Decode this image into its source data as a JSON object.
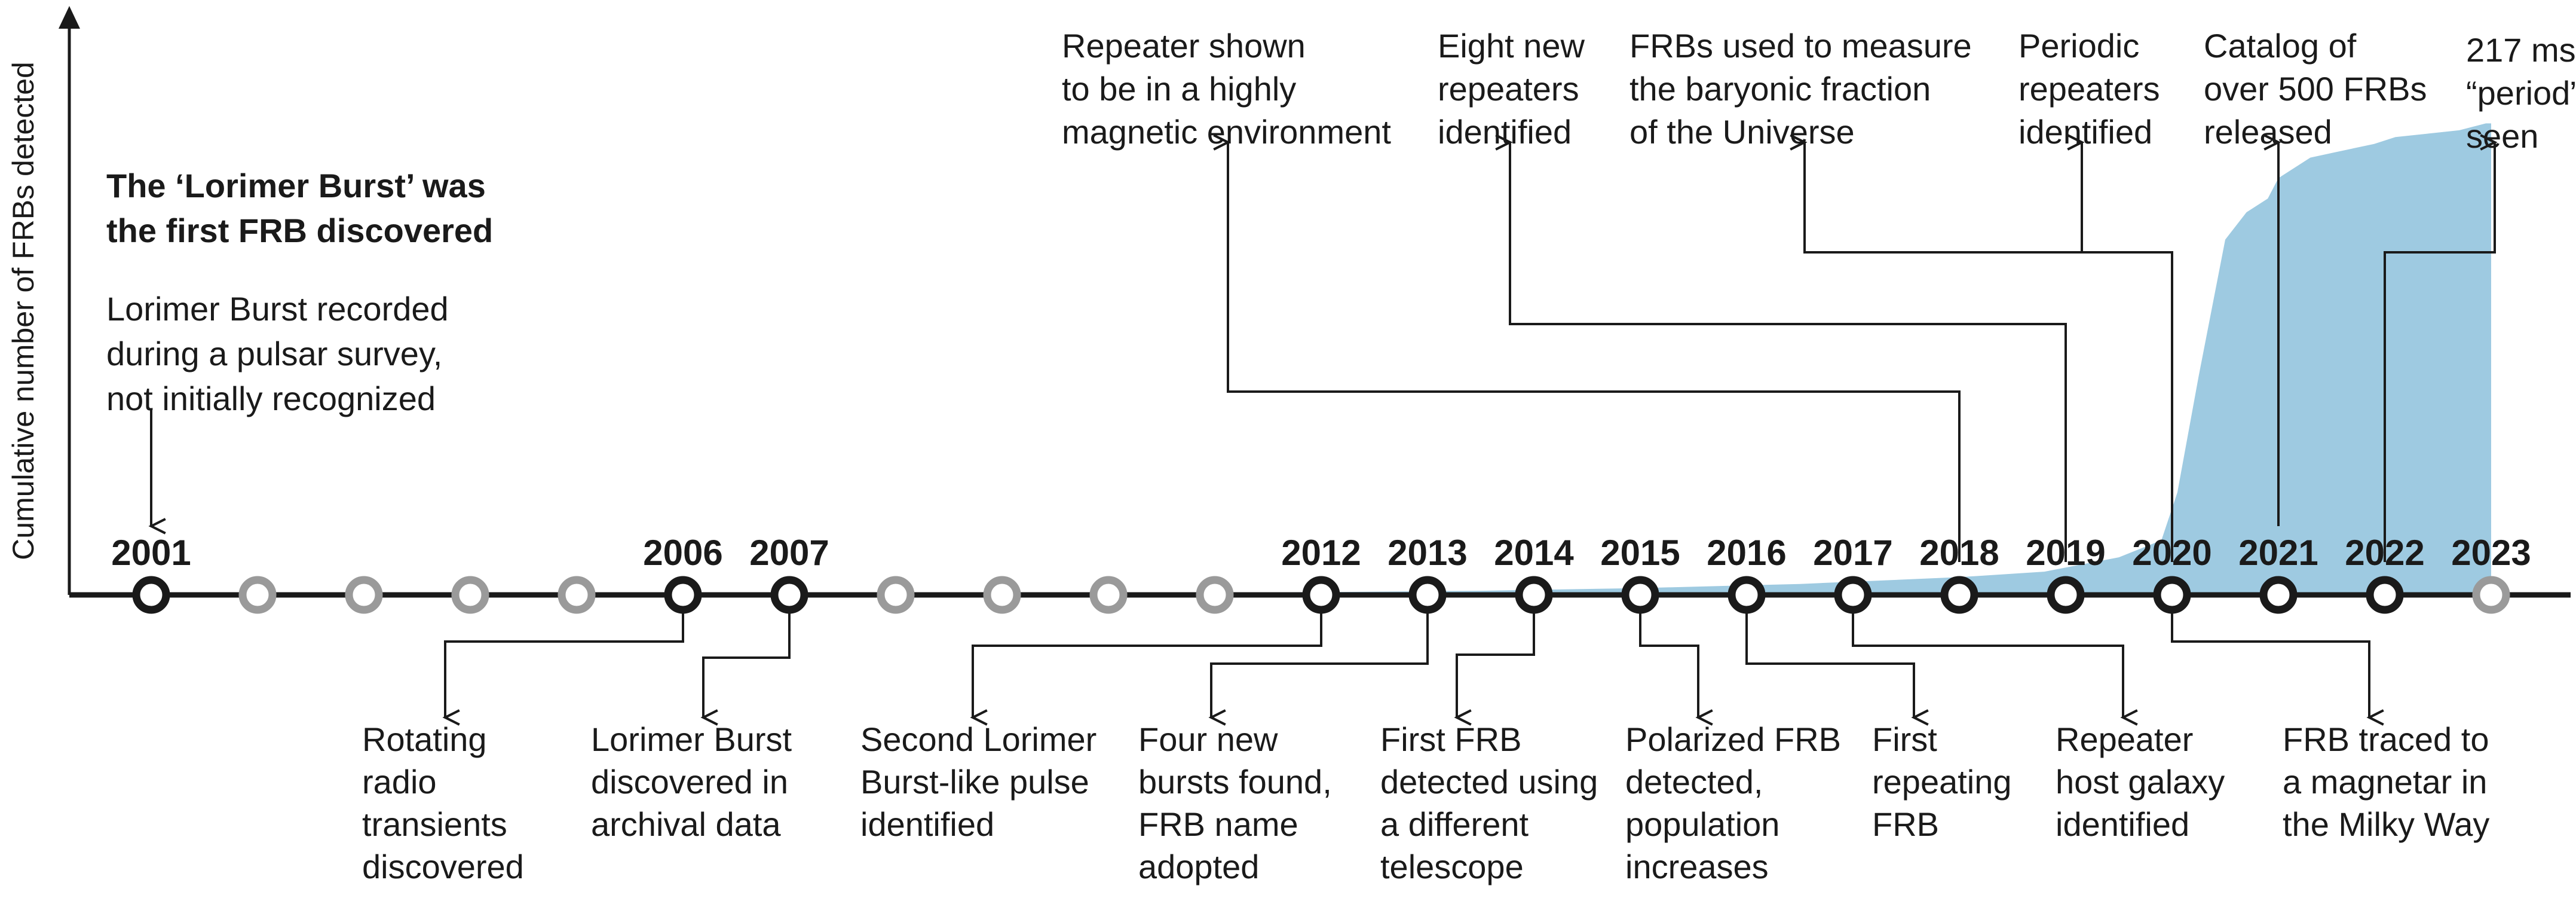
{
  "chart_data": {
    "type": "area",
    "ylabel": "Cumulative number of FRBs detected",
    "xlim": [
      2000.72,
      2023.0
    ],
    "ylim": [
      0,
      700
    ],
    "grid": false,
    "color": "#9ecae1",
    "cumulative": {
      "x": [
        2001.7,
        2007.0,
        2012.0,
        2013.5,
        2015.0,
        2016.5,
        2018.0,
        2018.8,
        2019.5,
        2019.9,
        2020.05,
        2020.25,
        2020.5,
        2020.7,
        2020.9,
        2021.0,
        2021.3,
        2021.6,
        2021.9,
        2022.1,
        2022.4,
        2022.7,
        2022.95,
        2023.0
      ],
      "y": [
        2,
        3,
        4,
        6,
        10,
        16,
        26,
        34,
        55,
        80,
        150,
        320,
        520,
        560,
        580,
        610,
        640,
        650,
        660,
        670,
        675,
        680,
        690,
        690
      ]
    },
    "years": [
      {
        "year": 2001,
        "label": "2001",
        "labeled": true
      },
      {
        "year": 2002,
        "label": "",
        "labeled": false
      },
      {
        "year": 2003,
        "label": "",
        "labeled": false
      },
      {
        "year": 2004,
        "label": "",
        "labeled": false
      },
      {
        "year": 2005,
        "label": "",
        "labeled": false
      },
      {
        "year": 2006,
        "label": "2006",
        "labeled": true
      },
      {
        "year": 2007,
        "label": "2007",
        "labeled": true
      },
      {
        "year": 2008,
        "label": "",
        "labeled": false
      },
      {
        "year": 2009,
        "label": "",
        "labeled": false
      },
      {
        "year": 2010,
        "label": "",
        "labeled": false
      },
      {
        "year": 2011,
        "label": "",
        "labeled": false
      },
      {
        "year": 2012,
        "label": "2012",
        "labeled": true
      },
      {
        "year": 2013,
        "label": "2013",
        "labeled": true
      },
      {
        "year": 2014,
        "label": "2014",
        "labeled": true
      },
      {
        "year": 2015,
        "label": "2015",
        "labeled": true
      },
      {
        "year": 2016,
        "label": "2016",
        "labeled": true
      },
      {
        "year": 2017,
        "label": "2017",
        "labeled": true
      },
      {
        "year": 2018,
        "label": "2018",
        "labeled": true
      },
      {
        "year": 2019,
        "label": "2019",
        "labeled": true
      },
      {
        "year": 2020,
        "label": "2020",
        "labeled": true
      },
      {
        "year": 2021,
        "label": "2021",
        "labeled": true
      },
      {
        "year": 2022,
        "label": "2022",
        "labeled": true
      },
      {
        "year": 2023,
        "label": "2023",
        "labeled": false
      }
    ],
    "events_above": [
      {
        "year": 2001,
        "lines_bold": [
          "The ‘Lorimer Burst’ was",
          "the first FRB discovered"
        ],
        "lines": [
          "Lorimer Burst recorded",
          "during a pulsar survey,",
          "not initially recognized"
        ]
      },
      {
        "year": 2018,
        "lines": [
          "Repeater shown",
          "to be in a highly",
          "magnetic environment"
        ]
      },
      {
        "year": 2019,
        "lines": [
          "Eight new",
          "repeaters",
          "identified"
        ]
      },
      {
        "year": 2020,
        "lines": [
          "FRBs used to measure",
          "the baryonic fraction",
          "of the Universe"
        ]
      },
      {
        "year": 2020,
        "lines": [
          "Periodic",
          "repeaters",
          "identified"
        ]
      },
      {
        "year": 2021,
        "lines": [
          "Catalog of",
          "over 500 FRBs",
          "released"
        ]
      },
      {
        "year": 2022,
        "lines": [
          "217 ms",
          "“period”",
          "seen"
        ]
      }
    ],
    "events_below": [
      {
        "year": 2006,
        "lines": [
          "Rotating",
          "radio",
          "transients",
          "discovered"
        ]
      },
      {
        "year": 2007,
        "lines": [
          "Lorimer Burst",
          "discovered in",
          "archival data"
        ]
      },
      {
        "year": 2012,
        "lines": [
          "Second Lorimer",
          "Burst-like pulse",
          "identified"
        ]
      },
      {
        "year": 2013,
        "lines": [
          "Four new",
          "bursts found,",
          "FRB name",
          "adopted"
        ]
      },
      {
        "year": 2014,
        "lines": [
          "First FRB",
          "detected using",
          "a different",
          "telescope"
        ]
      },
      {
        "year": 2015,
        "lines": [
          "Polarized FRB",
          "detected,",
          "population",
          "increases"
        ]
      },
      {
        "year": 2016,
        "lines": [
          "First",
          "repeating",
          "FRB"
        ]
      },
      {
        "year": 2017,
        "lines": [
          "Repeater",
          "host galaxy",
          "identified"
        ]
      },
      {
        "year": 2020,
        "lines": [
          "FRB traced to",
          "a magnetar in",
          "the Milky Way"
        ]
      }
    ]
  }
}
